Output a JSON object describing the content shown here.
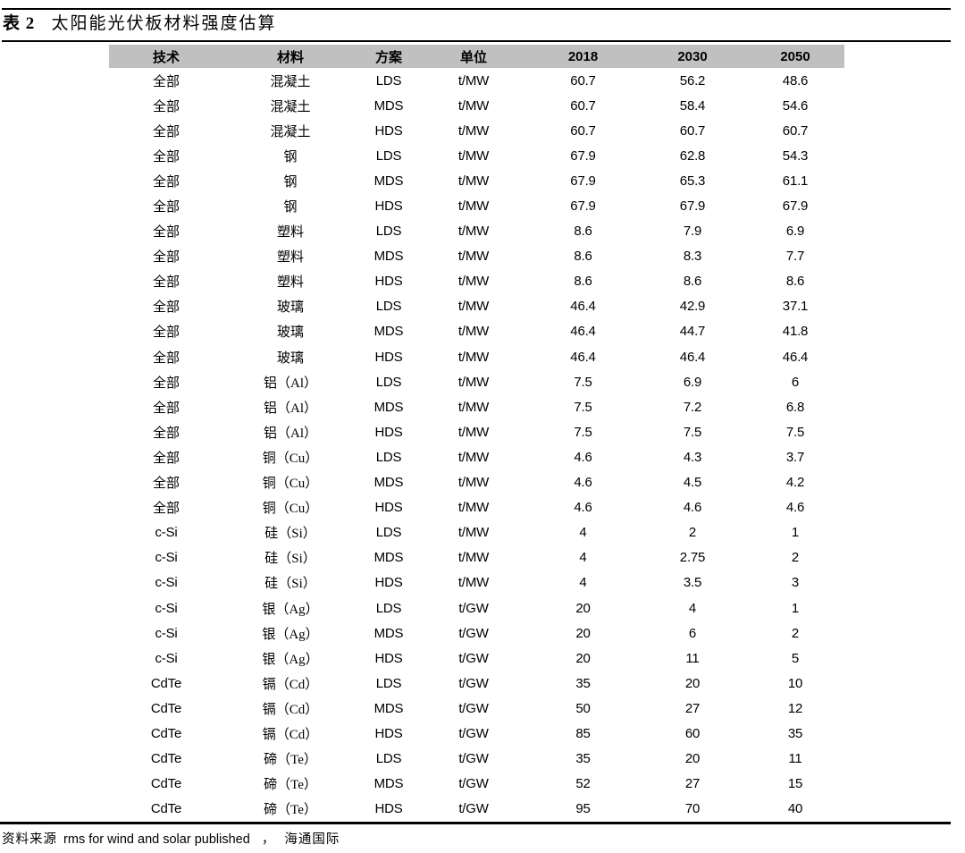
{
  "page": {
    "table_label": "表 2",
    "title": "太阳能光伏板材料强度估算"
  },
  "table": {
    "columns": [
      "技术",
      "材料",
      "方案",
      "单位",
      "2018",
      "2030",
      "2050"
    ],
    "rows": [
      [
        "全部",
        "混凝土",
        "LDS",
        "t/MW",
        "60.7",
        "56.2",
        "48.6"
      ],
      [
        "全部",
        "混凝土",
        "MDS",
        "t/MW",
        "60.7",
        "58.4",
        "54.6"
      ],
      [
        "全部",
        "混凝土",
        "HDS",
        "t/MW",
        "60.7",
        "60.7",
        "60.7"
      ],
      [
        "全部",
        "钢",
        "LDS",
        "t/MW",
        "67.9",
        "62.8",
        "54.3"
      ],
      [
        "全部",
        "钢",
        "MDS",
        "t/MW",
        "67.9",
        "65.3",
        "61.1"
      ],
      [
        "全部",
        "钢",
        "HDS",
        "t/MW",
        "67.9",
        "67.9",
        "67.9"
      ],
      [
        "全部",
        "塑料",
        "LDS",
        "t/MW",
        "8.6",
        "7.9",
        "6.9"
      ],
      [
        "全部",
        "塑料",
        "MDS",
        "t/MW",
        "8.6",
        "8.3",
        "7.7"
      ],
      [
        "全部",
        "塑料",
        "HDS",
        "t/MW",
        "8.6",
        "8.6",
        "8.6"
      ],
      [
        "全部",
        "玻璃",
        "LDS",
        "t/MW",
        "46.4",
        "42.9",
        "37.1"
      ],
      [
        "全部",
        "玻璃",
        "MDS",
        "t/MW",
        "46.4",
        "44.7",
        "41.8"
      ],
      [
        "全部",
        "玻璃",
        "HDS",
        "t/MW",
        "46.4",
        "46.4",
        "46.4"
      ],
      [
        "全部",
        "铝（Al）",
        "LDS",
        "t/MW",
        "7.5",
        "6.9",
        "6"
      ],
      [
        "全部",
        "铝（Al）",
        "MDS",
        "t/MW",
        "7.5",
        "7.2",
        "6.8"
      ],
      [
        "全部",
        "铝（Al）",
        "HDS",
        "t/MW",
        "7.5",
        "7.5",
        "7.5"
      ],
      [
        "全部",
        "铜（Cu）",
        "LDS",
        "t/MW",
        "4.6",
        "4.3",
        "3.7"
      ],
      [
        "全部",
        "铜（Cu）",
        "MDS",
        "t/MW",
        "4.6",
        "4.5",
        "4.2"
      ],
      [
        "全部",
        "铜（Cu）",
        "HDS",
        "t/MW",
        "4.6",
        "4.6",
        "4.6"
      ],
      [
        "c-Si",
        "硅（Si）",
        "LDS",
        "t/MW",
        "4",
        "2",
        "1"
      ],
      [
        "c-Si",
        "硅（Si）",
        "MDS",
        "t/MW",
        "4",
        "2.75",
        "2"
      ],
      [
        "c-Si",
        "硅（Si）",
        "HDS",
        "t/MW",
        "4",
        "3.5",
        "3"
      ],
      [
        "c-Si",
        "银（Ag）",
        "LDS",
        "t/GW",
        "20",
        "4",
        "1"
      ],
      [
        "c-Si",
        "银（Ag）",
        "MDS",
        "t/GW",
        "20",
        "6",
        "2"
      ],
      [
        "c-Si",
        "银（Ag）",
        "HDS",
        "t/GW",
        "20",
        "11",
        "5"
      ],
      [
        "CdTe",
        "镉（Cd）",
        "LDS",
        "t/GW",
        "35",
        "20",
        "10"
      ],
      [
        "CdTe",
        "镉（Cd）",
        "MDS",
        "t/GW",
        "50",
        "27",
        "12"
      ],
      [
        "CdTe",
        "镉（Cd）",
        "HDS",
        "t/GW",
        "85",
        "60",
        "35"
      ],
      [
        "CdTe",
        "碲（Te）",
        "LDS",
        "t/GW",
        "35",
        "20",
        "11"
      ],
      [
        "CdTe",
        "碲（Te）",
        "MDS",
        "t/GW",
        "52",
        "27",
        "15"
      ],
      [
        "CdTe",
        "碲（Te）",
        "HDS",
        "t/GW",
        "95",
        "70",
        "40"
      ]
    ]
  },
  "source": {
    "label": "资料来源",
    "reference": "rms for wind and solar published",
    "separator": "，",
    "publisher": "海通国际"
  },
  "colors": {
    "header_bg": "#c0c0c0",
    "rule": "#000000",
    "text": "#000000"
  }
}
